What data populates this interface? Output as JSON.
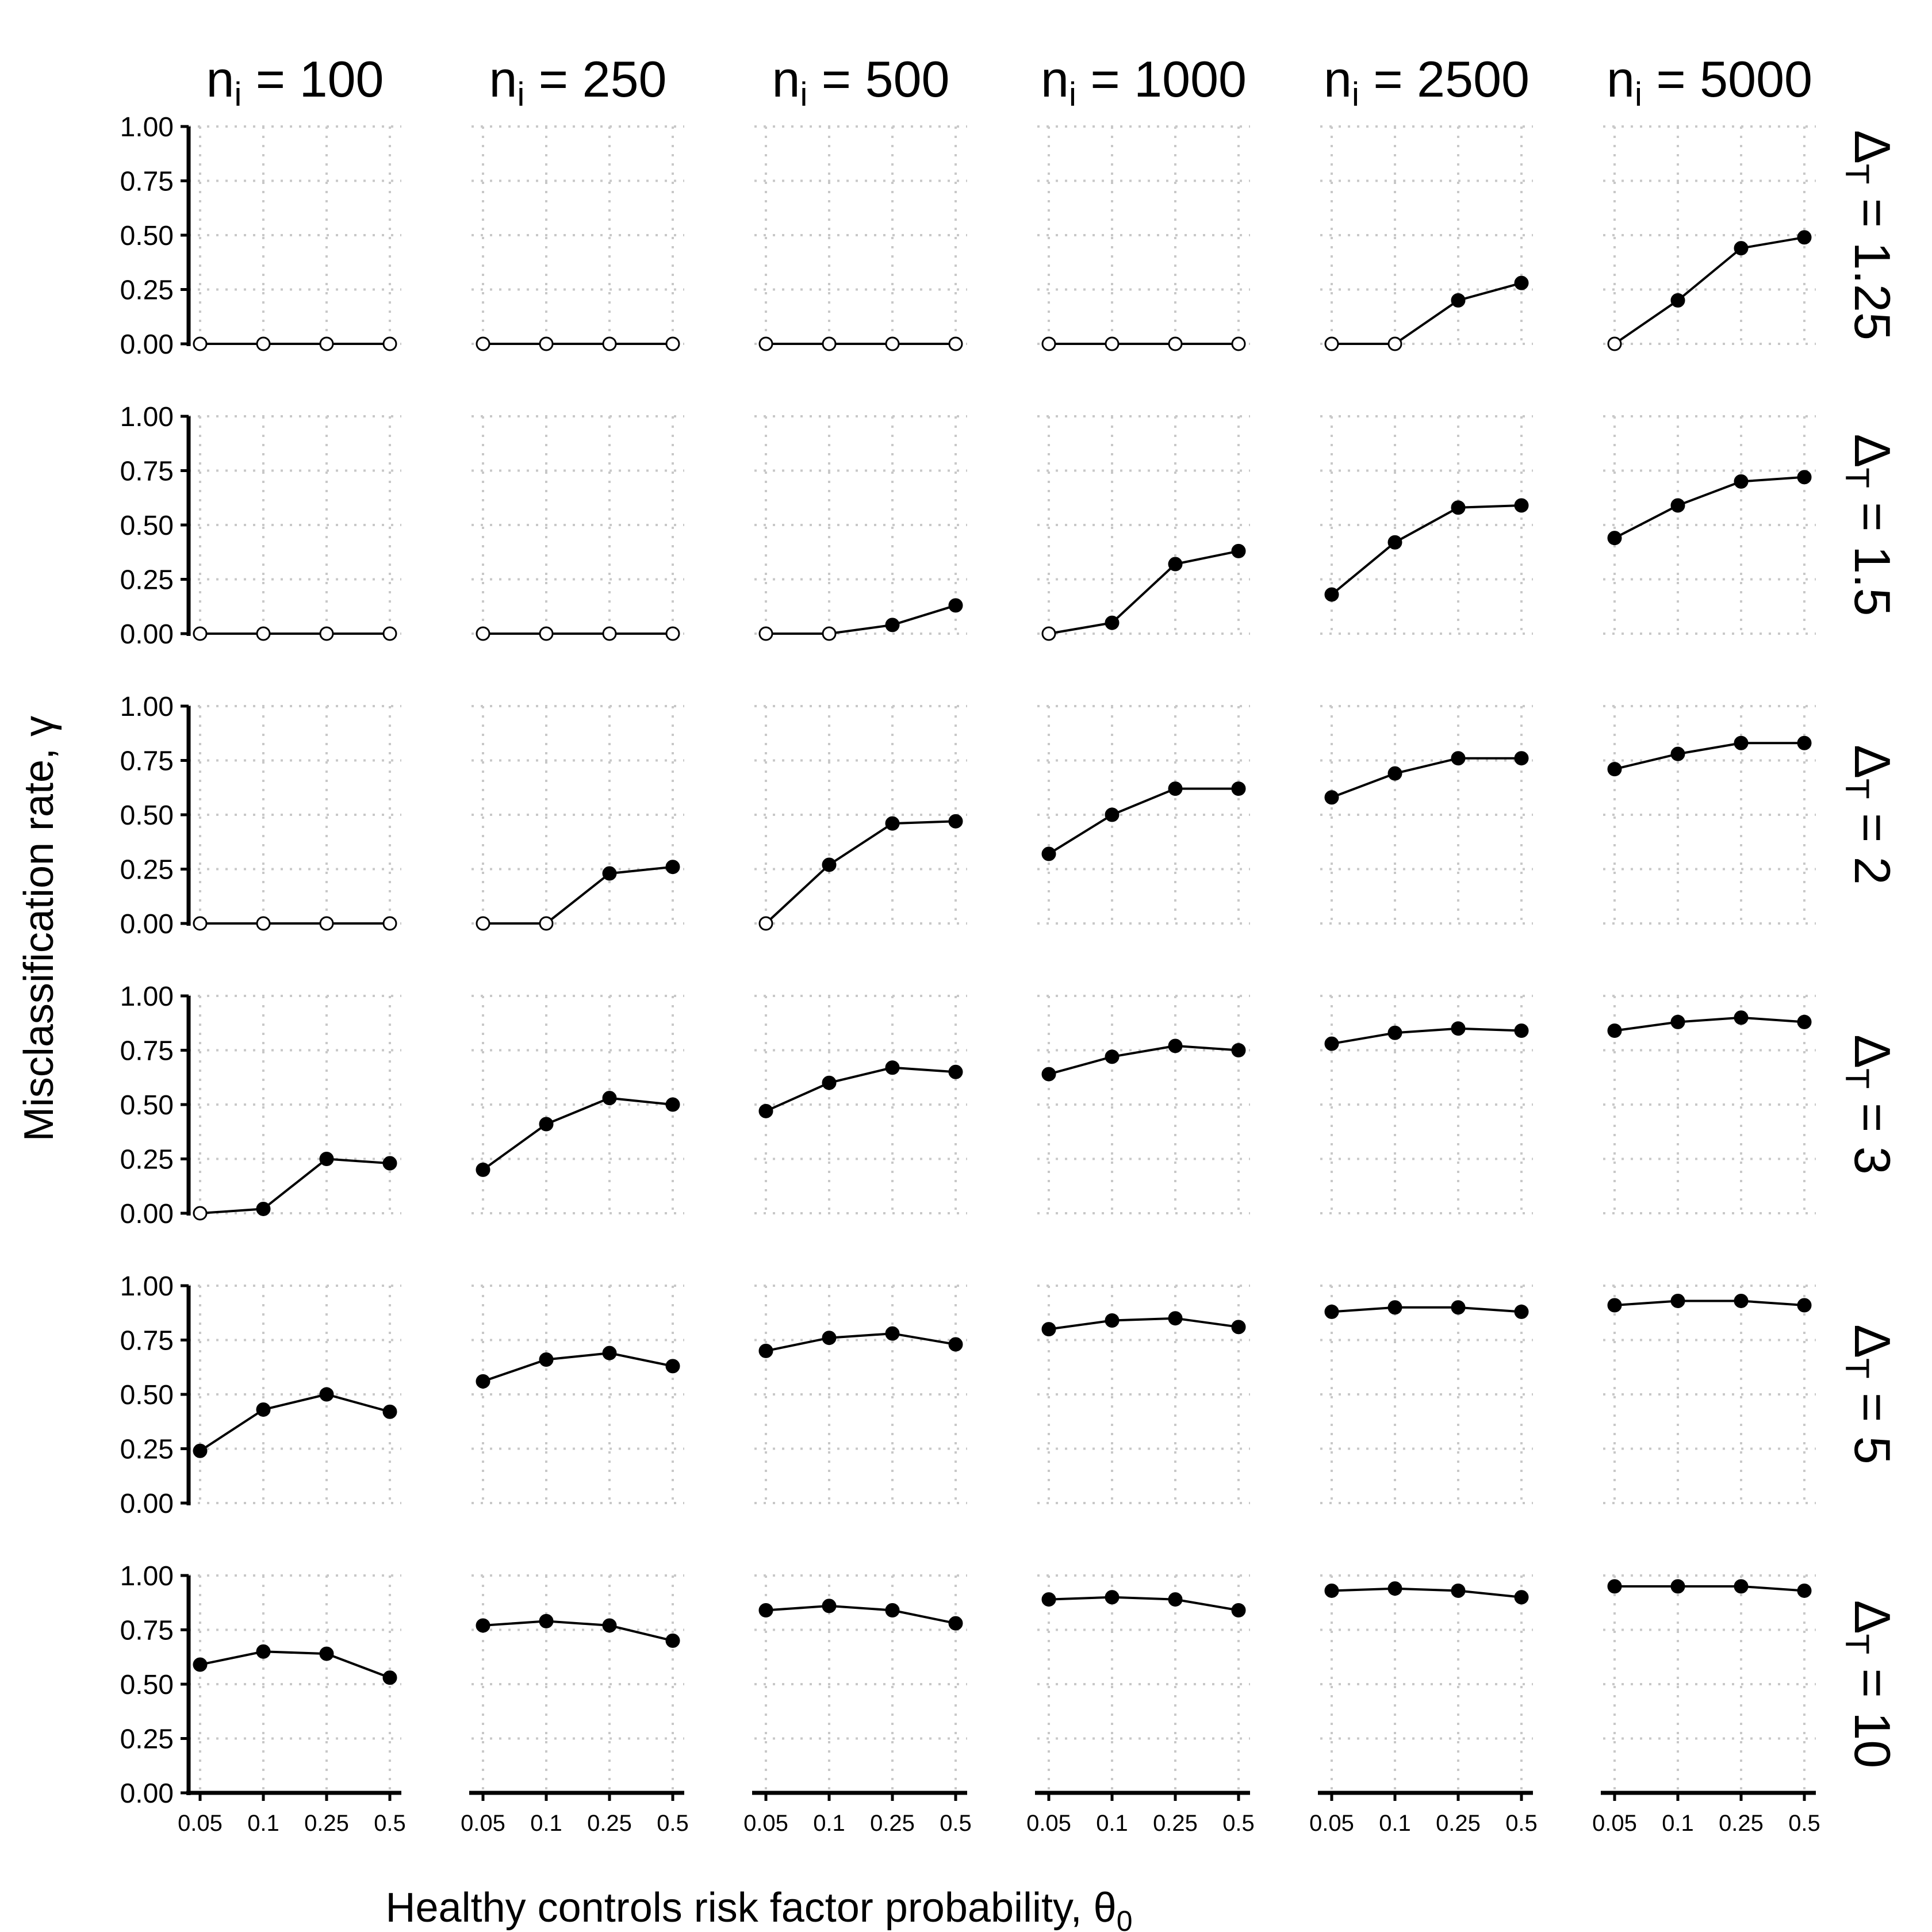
{
  "chart_data": {
    "type": "scatter",
    "layout": "facet-grid",
    "xlabel": "Healthy controls risk factor probability, θ",
    "xlabel_sub": "0",
    "ylabel": "Misclassification rate, γ",
    "x_ticks": [
      "0.05",
      "0.1",
      "0.25",
      "0.5"
    ],
    "y_ticks": [
      "0.00",
      "0.25",
      "0.50",
      "0.75",
      "1.00"
    ],
    "ylim": [
      0,
      1
    ],
    "grid": true,
    "col_facets": [
      {
        "prefix": "n",
        "sub": "i",
        "value": " = 100"
      },
      {
        "prefix": "n",
        "sub": "i",
        "value": " = 250"
      },
      {
        "prefix": "n",
        "sub": "i",
        "value": " = 500"
      },
      {
        "prefix": "n",
        "sub": "i",
        "value": " = 1000"
      },
      {
        "prefix": "n",
        "sub": "i",
        "value": " = 2500"
      },
      {
        "prefix": "n",
        "sub": "i",
        "value": " = 5000"
      }
    ],
    "row_facets": [
      {
        "prefix": "Δ",
        "sub": "T",
        "value": " = 1.25"
      },
      {
        "prefix": "Δ",
        "sub": "T",
        "value": " = 1.5"
      },
      {
        "prefix": "Δ",
        "sub": "T",
        "value": " = 2"
      },
      {
        "prefix": "Δ",
        "sub": "T",
        "value": " = 3"
      },
      {
        "prefix": "Δ",
        "sub": "T",
        "value": " = 5"
      },
      {
        "prefix": "Δ",
        "sub": "T",
        "value": " = 10"
      }
    ],
    "values": [
      [
        [
          0,
          0,
          0,
          0
        ],
        [
          0,
          0,
          0,
          0
        ],
        [
          0,
          0,
          0,
          0
        ],
        [
          0,
          0,
          0,
          0
        ],
        [
          0,
          0,
          0.2,
          0.28
        ],
        [
          0,
          0.2,
          0.44,
          0.49
        ]
      ],
      [
        [
          0,
          0,
          0,
          0
        ],
        [
          0,
          0,
          0,
          0
        ],
        [
          0,
          0,
          0.04,
          0.13
        ],
        [
          0,
          0.05,
          0.32,
          0.38
        ],
        [
          0.18,
          0.42,
          0.58,
          0.59
        ],
        [
          0.44,
          0.59,
          0.7,
          0.72
        ]
      ],
      [
        [
          0,
          0,
          0,
          0
        ],
        [
          0,
          0,
          0.23,
          0.26
        ],
        [
          0,
          0.27,
          0.46,
          0.47
        ],
        [
          0.32,
          0.5,
          0.62,
          0.62
        ],
        [
          0.58,
          0.69,
          0.76,
          0.76
        ],
        [
          0.71,
          0.78,
          0.83,
          0.83
        ]
      ],
      [
        [
          0,
          0.02,
          0.25,
          0.23
        ],
        [
          0.2,
          0.41,
          0.53,
          0.5
        ],
        [
          0.47,
          0.6,
          0.67,
          0.65
        ],
        [
          0.64,
          0.72,
          0.77,
          0.75
        ],
        [
          0.78,
          0.83,
          0.85,
          0.84
        ],
        [
          0.84,
          0.88,
          0.9,
          0.88
        ]
      ],
      [
        [
          0.24,
          0.43,
          0.5,
          0.42
        ],
        [
          0.56,
          0.66,
          0.69,
          0.63
        ],
        [
          0.7,
          0.76,
          0.78,
          0.73
        ],
        [
          0.8,
          0.84,
          0.85,
          0.81
        ],
        [
          0.88,
          0.9,
          0.9,
          0.88
        ],
        [
          0.91,
          0.93,
          0.93,
          0.91
        ]
      ],
      [
        [
          0.59,
          0.65,
          0.64,
          0.53
        ],
        [
          0.77,
          0.79,
          0.77,
          0.7
        ],
        [
          0.84,
          0.86,
          0.84,
          0.78
        ],
        [
          0.89,
          0.9,
          0.89,
          0.84
        ],
        [
          0.93,
          0.94,
          0.93,
          0.9
        ],
        [
          0.95,
          0.95,
          0.95,
          0.93
        ]
      ]
    ],
    "marker_rule": "open circle where value is 0, filled circle otherwise"
  }
}
